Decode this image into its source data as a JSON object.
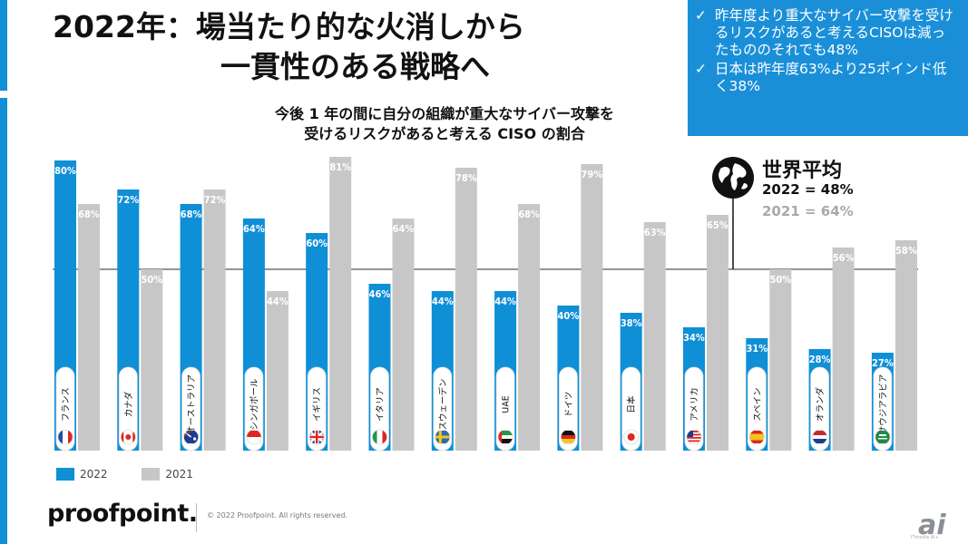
{
  "title": {
    "line1": "2022年：場当たり的な火消しから",
    "line2": "一貫性のある戦略へ"
  },
  "subtitle": {
    "line1": "今後 1 年の間に自分の組織が重大なサイバー攻撃を",
    "line2": "受けるリスクがあると考える CISO の割合"
  },
  "callout": {
    "items": [
      "昨年度より重大なサイバー攻撃を受けるリスクがあると考えるCISOは減ったもののそれでも48%",
      "日本は昨年度63%より25ポインド低く38%"
    ]
  },
  "global_average": {
    "title": "世界平均",
    "line_2022": "2022 = 48%",
    "line_2021": "2021 = 64%"
  },
  "legend": {
    "series_2022": "2022",
    "series_2021": "2021"
  },
  "footer": {
    "logo": "proofpoint.",
    "copyright": "© 2022  Proofpoint. All rights reserved.",
    "watermark": "ai",
    "watermark_sub": "ITmedia AI+"
  },
  "colors": {
    "blue": "#0f8fd6",
    "gray": "#c7c7c7",
    "callout": "#1a8fd8"
  },
  "chart_data": {
    "type": "bar",
    "title": "今後 1 年の間に自分の組織が重大なサイバー攻撃を受けるリスクがあると考える CISO の割合",
    "categories": [
      "フランス",
      "カナダ",
      "オーストラリア",
      "シンガポール",
      "イギリス",
      "イタリア",
      "スウェーデン",
      "UAE",
      "ドイツ",
      "日本",
      "アメリカ",
      "スペイン",
      "オランダ",
      "サウジアラビア"
    ],
    "flags": [
      "france",
      "canada",
      "australia",
      "singapore",
      "uk",
      "italy",
      "sweden",
      "uae",
      "germany",
      "japan",
      "usa",
      "spain",
      "netherlands",
      "saudi"
    ],
    "series": [
      {
        "name": "2022",
        "values": [
          80,
          72,
          68,
          64,
          60,
          46,
          44,
          44,
          40,
          38,
          34,
          31,
          28,
          27
        ]
      },
      {
        "name": "2021",
        "values": [
          68,
          50,
          72,
          44,
          81,
          64,
          78,
          68,
          79,
          63,
          65,
          50,
          56,
          58
        ]
      }
    ],
    "labels_2022": [
      "80%",
      "72%",
      "68%",
      "64%",
      "60%",
      "46%",
      "44%",
      "44%",
      "40%",
      "38%",
      "34%",
      "31%",
      "28%",
      "27%"
    ],
    "labels_2021": [
      "68%",
      "50%",
      "72%",
      "44%",
      "81%",
      "64%",
      "78%",
      "68%",
      "79%",
      "63%",
      "65%",
      "50%",
      "56%",
      "58%"
    ],
    "reference_line": 50,
    "ylim": [
      0,
      100
    ]
  }
}
